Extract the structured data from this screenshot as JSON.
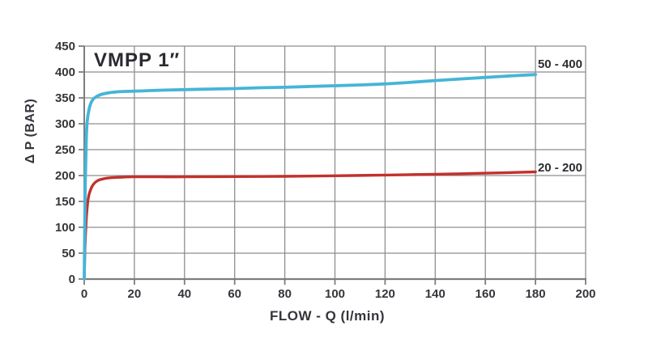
{
  "chart_data": {
    "type": "line",
    "title": "VMPP 1″",
    "xlabel": "FLOW - Q (l/min)",
    "ylabel": "Δ P (BAR)",
    "xlim": [
      0,
      200
    ],
    "ylim": [
      0,
      450
    ],
    "x_ticks": [
      0,
      20,
      40,
      60,
      80,
      100,
      120,
      140,
      160,
      180,
      200
    ],
    "y_ticks": [
      0,
      50,
      100,
      150,
      200,
      250,
      300,
      350,
      400,
      450
    ],
    "grid": true,
    "legend_position": "inside-right",
    "series": [
      {
        "name": "50 - 400",
        "color": "#45b5d8",
        "stroke_width": 3.8,
        "points": [
          [
            0,
            0
          ],
          [
            0.4,
            180
          ],
          [
            0.8,
            270
          ],
          [
            1.2,
            305
          ],
          [
            1.8,
            325
          ],
          [
            2.5,
            338
          ],
          [
            3.5,
            347
          ],
          [
            5,
            353
          ],
          [
            7,
            357
          ],
          [
            10,
            360
          ],
          [
            14,
            362
          ],
          [
            20,
            363
          ],
          [
            26,
            364
          ],
          [
            32,
            365
          ],
          [
            40,
            366
          ],
          [
            50,
            367
          ],
          [
            60,
            368
          ],
          [
            70,
            369.5
          ],
          [
            80,
            370.5
          ],
          [
            90,
            372
          ],
          [
            100,
            373.5
          ],
          [
            110,
            375
          ],
          [
            120,
            377
          ],
          [
            130,
            380
          ],
          [
            140,
            383.5
          ],
          [
            150,
            386.5
          ],
          [
            160,
            389.5
          ],
          [
            170,
            392.5
          ],
          [
            180,
            395
          ]
        ]
      },
      {
        "name": "20 - 200",
        "color": "#c3312c",
        "stroke_width": 3.4,
        "points": [
          [
            0,
            0
          ],
          [
            0.3,
            60
          ],
          [
            0.7,
            105
          ],
          [
            1,
            128
          ],
          [
            1.5,
            152
          ],
          [
            2,
            165
          ],
          [
            3,
            178
          ],
          [
            4,
            185
          ],
          [
            5,
            189
          ],
          [
            6,
            191.5
          ],
          [
            8,
            194
          ],
          [
            10,
            195.5
          ],
          [
            14,
            196.5
          ],
          [
            20,
            197.5
          ],
          [
            30,
            197.5
          ],
          [
            40,
            197.5
          ],
          [
            60,
            198
          ],
          [
            80,
            198.5
          ],
          [
            100,
            199.5
          ],
          [
            120,
            201
          ],
          [
            140,
            202.5
          ],
          [
            160,
            204.5
          ],
          [
            180,
            207
          ]
        ]
      }
    ],
    "colors": {
      "grid": "#8e8e8e",
      "axis": "#7d7d7d",
      "tick_text": "#35353b",
      "title_text": "#2a2a31",
      "background": "#ffffff"
    }
  }
}
